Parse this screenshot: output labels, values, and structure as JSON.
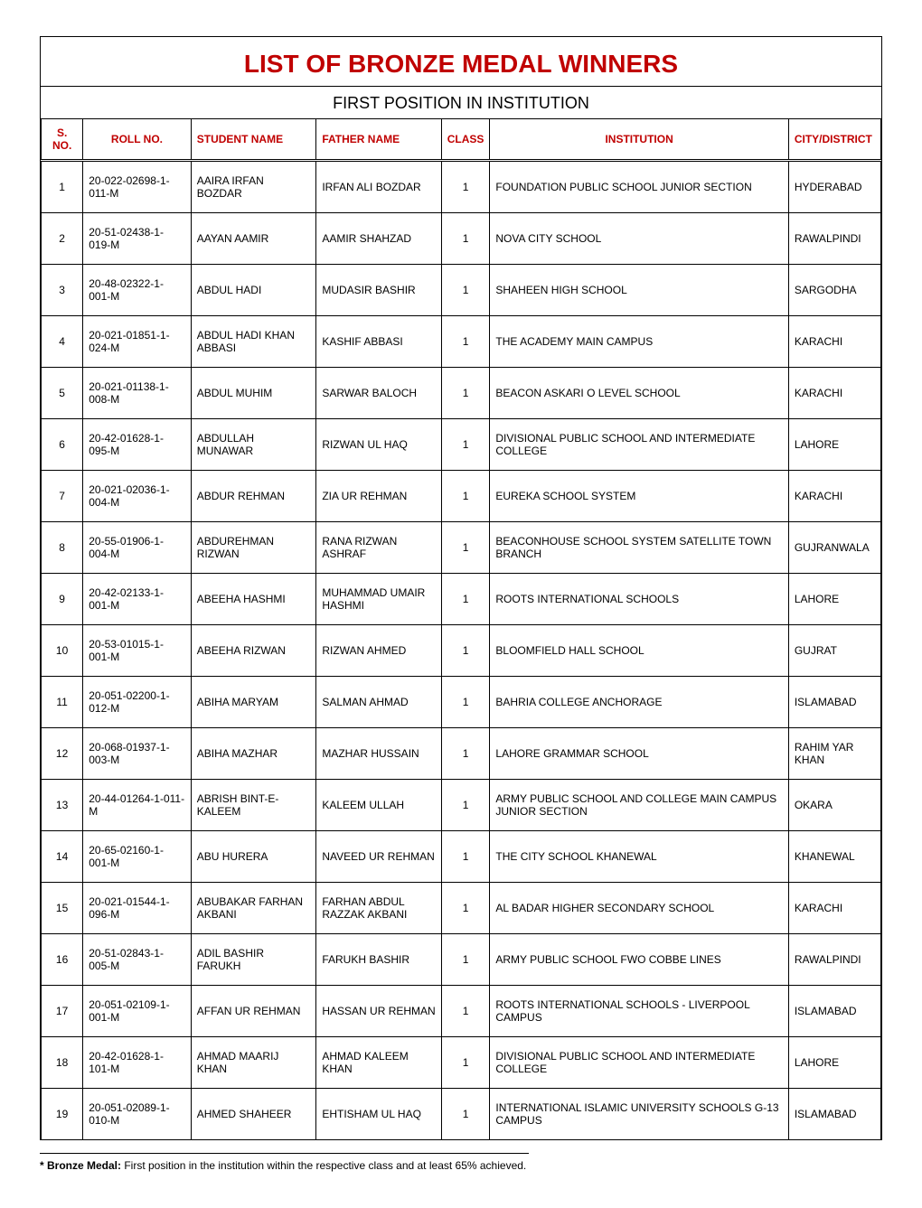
{
  "title": "LIST OF BRONZE MEDAL WINNERS",
  "subtitle": "FIRST POSITION IN INSTITUTION",
  "footnote_bold": "* Bronze Medal:",
  "footnote_text": "  First position in the institution within the respective class and at least 65% achieved.",
  "colors": {
    "heading": "#c00000",
    "border": "#000000",
    "text": "#000000",
    "background": "#ffffff"
  },
  "columns": [
    {
      "key": "sno",
      "label": "S. NO.",
      "align": "center",
      "width": "5%"
    },
    {
      "key": "roll",
      "label": "ROLL NO.",
      "align": "center",
      "width": "13%"
    },
    {
      "key": "name",
      "label": "STUDENT NAME",
      "align": "left",
      "width": "15%"
    },
    {
      "key": "father",
      "label": "FATHER NAME",
      "align": "left",
      "width": "15%"
    },
    {
      "key": "class",
      "label": "CLASS",
      "align": "center",
      "width": "5%"
    },
    {
      "key": "inst",
      "label": "INSTITUTION",
      "align": "center",
      "width": "36%"
    },
    {
      "key": "city",
      "label": "CITY/DISTRICT",
      "align": "left",
      "width": "11%"
    }
  ],
  "rows": [
    {
      "sno": "1",
      "roll": "20-022-02698-1-011-M",
      "name": "AAIRA IRFAN BOZDAR",
      "father": "IRFAN ALI BOZDAR",
      "class": "1",
      "inst": "FOUNDATION PUBLIC SCHOOL JUNIOR SECTION",
      "city": "HYDERABAD"
    },
    {
      "sno": "2",
      "roll": "20-51-02438-1-019-M",
      "name": "AAYAN AAMIR",
      "father": "AAMIR SHAHZAD",
      "class": "1",
      "inst": "NOVA CITY SCHOOL",
      "city": "RAWALPINDI"
    },
    {
      "sno": "3",
      "roll": "20-48-02322-1-001-M",
      "name": "ABDUL HADI",
      "father": "MUDASIR BASHIR",
      "class": "1",
      "inst": "SHAHEEN HIGH SCHOOL",
      "city": "SARGODHA"
    },
    {
      "sno": "4",
      "roll": "20-021-01851-1-024-M",
      "name": "ABDUL HADI KHAN ABBASI",
      "father": "KASHIF ABBASI",
      "class": "1",
      "inst": "THE ACADEMY MAIN CAMPUS",
      "city": "KARACHI"
    },
    {
      "sno": "5",
      "roll": "20-021-01138-1-008-M",
      "name": "ABDUL MUHIM",
      "father": "SARWAR BALOCH",
      "class": "1",
      "inst": "BEACON ASKARI O LEVEL SCHOOL",
      "city": "KARACHI"
    },
    {
      "sno": "6",
      "roll": "20-42-01628-1-095-M",
      "name": "ABDULLAH MUNAWAR",
      "father": "RIZWAN UL HAQ",
      "class": "1",
      "inst": "DIVISIONAL PUBLIC SCHOOL AND INTERMEDIATE COLLEGE",
      "city": "LAHORE"
    },
    {
      "sno": "7",
      "roll": "20-021-02036-1-004-M",
      "name": "ABDUR REHMAN",
      "father": "ZIA UR REHMAN",
      "class": "1",
      "inst": "EUREKA SCHOOL SYSTEM",
      "city": "KARACHI"
    },
    {
      "sno": "8",
      "roll": "20-55-01906-1-004-M",
      "name": "ABDUREHMAN RIZWAN",
      "father": "RANA RIZWAN ASHRAF",
      "class": "1",
      "inst": "BEACONHOUSE SCHOOL SYSTEM SATELLITE TOWN BRANCH",
      "city": "GUJRANWALA"
    },
    {
      "sno": "9",
      "roll": "20-42-02133-1-001-M",
      "name": "ABEEHA HASHMI",
      "father": "MUHAMMAD UMAIR HASHMI",
      "class": "1",
      "inst": "ROOTS INTERNATIONAL SCHOOLS",
      "city": "LAHORE"
    },
    {
      "sno": "10",
      "roll": "20-53-01015-1-001-M",
      "name": "ABEEHA RIZWAN",
      "father": "RIZWAN AHMED",
      "class": "1",
      "inst": "BLOOMFIELD HALL SCHOOL",
      "city": "GUJRAT"
    },
    {
      "sno": "11",
      "roll": "20-051-02200-1-012-M",
      "name": "ABIHA MARYAM",
      "father": "SALMAN AHMAD",
      "class": "1",
      "inst": "BAHRIA COLLEGE ANCHORAGE",
      "city": "ISLAMABAD"
    },
    {
      "sno": "12",
      "roll": "20-068-01937-1-003-M",
      "name": "ABIHA MAZHAR",
      "father": "MAZHAR HUSSAIN",
      "class": "1",
      "inst": "LAHORE GRAMMAR SCHOOL",
      "city": "RAHIM YAR KHAN"
    },
    {
      "sno": "13",
      "roll": "20-44-01264-1-011-M",
      "name": "ABRISH BINT-E-KALEEM",
      "father": "KALEEM ULLAH",
      "class": "1",
      "inst": "ARMY PUBLIC SCHOOL AND COLLEGE MAIN CAMPUS JUNIOR SECTION",
      "city": "OKARA"
    },
    {
      "sno": "14",
      "roll": "20-65-02160-1-001-M",
      "name": "ABU HURERA",
      "father": "NAVEED UR REHMAN",
      "class": "1",
      "inst": "THE CITY SCHOOL KHANEWAL",
      "city": "KHANEWAL"
    },
    {
      "sno": "15",
      "roll": "20-021-01544-1-096-M",
      "name": "ABUBAKAR FARHAN AKBANI",
      "father": "FARHAN ABDUL RAZZAK AKBANI",
      "class": "1",
      "inst": "AL BADAR HIGHER SECONDARY SCHOOL",
      "city": "KARACHI"
    },
    {
      "sno": "16",
      "roll": "20-51-02843-1-005-M",
      "name": "ADIL BASHIR FARUKH",
      "father": "FARUKH BASHIR",
      "class": "1",
      "inst": "ARMY PUBLIC SCHOOL FWO COBBE LINES",
      "city": "RAWALPINDI"
    },
    {
      "sno": "17",
      "roll": "20-051-02109-1-001-M",
      "name": "AFFAN UR REHMAN",
      "father": "HASSAN UR REHMAN",
      "class": "1",
      "inst": "ROOTS INTERNATIONAL SCHOOLS - LIVERPOOL CAMPUS",
      "city": "ISLAMABAD"
    },
    {
      "sno": "18",
      "roll": "20-42-01628-1-101-M",
      "name": "AHMAD MAARIJ KHAN",
      "father": "AHMAD KALEEM KHAN",
      "class": "1",
      "inst": "DIVISIONAL PUBLIC SCHOOL AND INTERMEDIATE COLLEGE",
      "city": "LAHORE"
    },
    {
      "sno": "19",
      "roll": "20-051-02089-1-010-M",
      "name": "AHMED SHAHEER",
      "father": "EHTISHAM UL HAQ",
      "class": "1",
      "inst": "INTERNATIONAL ISLAMIC UNIVERSITY SCHOOLS G-13 CAMPUS",
      "city": "ISLAMABAD"
    }
  ]
}
